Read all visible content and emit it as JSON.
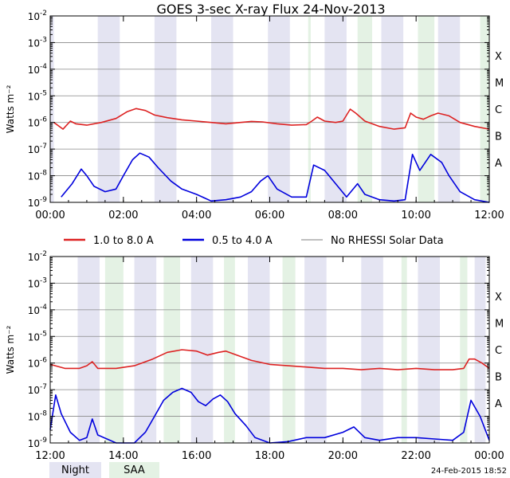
{
  "title": "GOES 3-sec X-ray Flux   24-Nov-2013",
  "footer_date": "24-Feb-2015 18:52",
  "colors": {
    "long": "#dd2222",
    "short": "#0000dd",
    "no_data": "#999999",
    "night": "#e4e4f2",
    "saa": "#e4f2e4",
    "grid": "#888888"
  },
  "legend": {
    "long": "1.0 to 8.0 A",
    "short": "0.5 to 4.0 A",
    "no_data": "No RHESSI Solar Data",
    "night": "Night",
    "saa": "SAA"
  },
  "chart_data": [
    {
      "type": "line",
      "panel": "top",
      "ylabel": "Watts m⁻²",
      "ylim_log10": [
        -9,
        -2
      ],
      "y_tick_exponents": [
        -9,
        -8,
        -7,
        -6,
        -5,
        -4,
        -3,
        -2
      ],
      "xlim_hours": [
        0,
        12
      ],
      "x_tick_labels": [
        "00:00",
        "02:00",
        "04:00",
        "06:00",
        "08:00",
        "10:00",
        "12:00"
      ],
      "class_labels": [
        {
          "label": "A",
          "log10": -8
        },
        {
          "label": "B",
          "log10": -7
        },
        {
          "label": "C",
          "log10": -6
        },
        {
          "label": "M",
          "log10": -5
        },
        {
          "label": "X",
          "log10": -4
        }
      ],
      "night_bands_hours": [
        [
          0,
          0.1
        ],
        [
          1.3,
          1.9
        ],
        [
          2.85,
          3.45
        ],
        [
          4.4,
          5.0
        ],
        [
          5.95,
          6.55
        ],
        [
          7.5,
          8.1
        ],
        [
          9.05,
          9.65
        ],
        [
          10.6,
          11.2
        ]
      ],
      "saa_bands_hours": [
        [
          7.05,
          7.12
        ],
        [
          8.4,
          8.8
        ],
        [
          10.05,
          10.5
        ],
        [
          11.75,
          12
        ]
      ],
      "series": [
        {
          "name": "1.0 to 8.0 A",
          "key": "long",
          "points": [
            [
              0.1,
              -6.0
            ],
            [
              0.35,
              -6.25
            ],
            [
              0.55,
              -5.95
            ],
            [
              0.7,
              -6.05
            ],
            [
              1.0,
              -6.1
            ],
            [
              1.4,
              -6.0
            ],
            [
              1.8,
              -5.85
            ],
            [
              2.1,
              -5.6
            ],
            [
              2.35,
              -5.48
            ],
            [
              2.6,
              -5.55
            ],
            [
              2.85,
              -5.72
            ],
            [
              3.2,
              -5.82
            ],
            [
              3.6,
              -5.9
            ],
            [
              4.0,
              -5.95
            ],
            [
              4.4,
              -6.0
            ],
            [
              4.8,
              -6.05
            ],
            [
              5.2,
              -6.0
            ],
            [
              5.5,
              -5.96
            ],
            [
              5.8,
              -5.98
            ],
            [
              6.2,
              -6.05
            ],
            [
              6.6,
              -6.1
            ],
            [
              7.0,
              -6.08
            ],
            [
              7.15,
              -5.95
            ],
            [
              7.3,
              -5.8
            ],
            [
              7.5,
              -5.95
            ],
            [
              7.8,
              -6.0
            ],
            [
              8.0,
              -5.95
            ],
            [
              8.2,
              -5.5
            ],
            [
              8.35,
              -5.65
            ],
            [
              8.6,
              -5.95
            ],
            [
              9.0,
              -6.15
            ],
            [
              9.4,
              -6.25
            ],
            [
              9.7,
              -6.2
            ],
            [
              9.85,
              -5.65
            ],
            [
              10.0,
              -5.8
            ],
            [
              10.2,
              -5.88
            ],
            [
              10.4,
              -5.75
            ],
            [
              10.6,
              -5.65
            ],
            [
              10.9,
              -5.75
            ],
            [
              11.2,
              -6.0
            ],
            [
              11.6,
              -6.15
            ],
            [
              12.0,
              -6.25
            ]
          ]
        },
        {
          "name": "0.5 to 4.0 A",
          "key": "short",
          "points": [
            [
              0.3,
              -8.8
            ],
            [
              0.6,
              -8.3
            ],
            [
              0.85,
              -7.75
            ],
            [
              1.0,
              -8.0
            ],
            [
              1.2,
              -8.4
            ],
            [
              1.5,
              -8.6
            ],
            [
              1.8,
              -8.5
            ],
            [
              2.0,
              -8.0
            ],
            [
              2.25,
              -7.4
            ],
            [
              2.45,
              -7.15
            ],
            [
              2.7,
              -7.3
            ],
            [
              2.95,
              -7.7
            ],
            [
              3.3,
              -8.2
            ],
            [
              3.6,
              -8.5
            ],
            [
              4.0,
              -8.7
            ],
            [
              4.4,
              -8.95
            ],
            [
              4.8,
              -8.9
            ],
            [
              5.2,
              -8.8
            ],
            [
              5.5,
              -8.6
            ],
            [
              5.75,
              -8.2
            ],
            [
              5.95,
              -8.0
            ],
            [
              6.2,
              -8.5
            ],
            [
              6.6,
              -8.8
            ],
            [
              7.0,
              -8.8
            ],
            [
              7.2,
              -7.6
            ],
            [
              7.5,
              -7.8
            ],
            [
              7.8,
              -8.3
            ],
            [
              8.1,
              -8.8
            ],
            [
              8.4,
              -8.3
            ],
            [
              8.6,
              -8.7
            ],
            [
              9.0,
              -8.9
            ],
            [
              9.4,
              -8.95
            ],
            [
              9.7,
              -8.9
            ],
            [
              9.9,
              -7.2
            ],
            [
              10.1,
              -7.8
            ],
            [
              10.4,
              -7.2
            ],
            [
              10.7,
              -7.5
            ],
            [
              10.9,
              -8.0
            ],
            [
              11.2,
              -8.6
            ],
            [
              11.6,
              -8.9
            ],
            [
              12.0,
              -9.0
            ]
          ]
        }
      ]
    },
    {
      "type": "line",
      "panel": "bottom",
      "ylabel": "Watts m⁻²",
      "ylim_log10": [
        -9,
        -2
      ],
      "y_tick_exponents": [
        -9,
        -8,
        -7,
        -6,
        -5,
        -4,
        -3,
        -2
      ],
      "xlim_hours": [
        12,
        24
      ],
      "x_tick_labels": [
        "12:00",
        "14:00",
        "16:00",
        "18:00",
        "20:00",
        "22:00",
        "00:00"
      ],
      "class_labels": [
        {
          "label": "A",
          "log10": -8
        },
        {
          "label": "B",
          "log10": -7
        },
        {
          "label": "C",
          "log10": -6
        },
        {
          "label": "M",
          "log10": -5
        },
        {
          "label": "X",
          "log10": -4
        }
      ],
      "night_bands_hours": [
        [
          12.75,
          13.35
        ],
        [
          14.3,
          14.9
        ],
        [
          15.85,
          16.45
        ],
        [
          17.4,
          18.0
        ],
        [
          18.95,
          19.55
        ],
        [
          20.5,
          21.1
        ],
        [
          22.05,
          22.65
        ],
        [
          23.6,
          23.9
        ]
      ],
      "saa_bands_hours": [
        [
          13.5,
          14.0
        ],
        [
          15.1,
          15.55
        ],
        [
          16.75,
          17.05
        ],
        [
          18.35,
          18.7
        ],
        [
          21.6,
          21.75
        ],
        [
          23.2,
          23.4
        ]
      ],
      "series": [
        {
          "name": "1.0 to 8.0 A",
          "key": "long",
          "points": [
            [
              12.0,
              -6.05
            ],
            [
              12.4,
              -6.2
            ],
            [
              12.8,
              -6.2
            ],
            [
              13.0,
              -6.1
            ],
            [
              13.15,
              -5.95
            ],
            [
              13.3,
              -6.2
            ],
            [
              13.8,
              -6.2
            ],
            [
              14.3,
              -6.1
            ],
            [
              14.8,
              -5.85
            ],
            [
              15.2,
              -5.6
            ],
            [
              15.6,
              -5.5
            ],
            [
              16.0,
              -5.55
            ],
            [
              16.3,
              -5.7
            ],
            [
              16.6,
              -5.6
            ],
            [
              16.8,
              -5.55
            ],
            [
              17.1,
              -5.7
            ],
            [
              17.5,
              -5.9
            ],
            [
              18.0,
              -6.05
            ],
            [
              18.5,
              -6.1
            ],
            [
              19.0,
              -6.15
            ],
            [
              19.5,
              -6.2
            ],
            [
              20.0,
              -6.2
            ],
            [
              20.5,
              -6.25
            ],
            [
              21.0,
              -6.2
            ],
            [
              21.5,
              -6.25
            ],
            [
              22.0,
              -6.2
            ],
            [
              22.5,
              -6.25
            ],
            [
              23.0,
              -6.25
            ],
            [
              23.3,
              -6.2
            ],
            [
              23.45,
              -5.85
            ],
            [
              23.6,
              -5.85
            ],
            [
              23.8,
              -6.0
            ],
            [
              24.0,
              -6.2
            ]
          ]
        },
        {
          "name": "0.5 to 4.0 A",
          "key": "short",
          "points": [
            [
              12.0,
              -8.5
            ],
            [
              12.15,
              -7.2
            ],
            [
              12.3,
              -7.9
            ],
            [
              12.55,
              -8.6
            ],
            [
              12.8,
              -8.9
            ],
            [
              13.0,
              -8.8
            ],
            [
              13.15,
              -8.1
            ],
            [
              13.3,
              -8.7
            ],
            [
              13.8,
              -9.0
            ],
            [
              14.3,
              -9.0
            ],
            [
              14.6,
              -8.6
            ],
            [
              14.85,
              -8.0
            ],
            [
              15.1,
              -7.4
            ],
            [
              15.35,
              -7.1
            ],
            [
              15.6,
              -6.95
            ],
            [
              15.85,
              -7.1
            ],
            [
              16.05,
              -7.45
            ],
            [
              16.25,
              -7.6
            ],
            [
              16.45,
              -7.35
            ],
            [
              16.65,
              -7.2
            ],
            [
              16.85,
              -7.45
            ],
            [
              17.05,
              -7.9
            ],
            [
              17.35,
              -8.35
            ],
            [
              17.6,
              -8.8
            ],
            [
              18.0,
              -9.0
            ],
            [
              18.5,
              -8.95
            ],
            [
              19.0,
              -8.8
            ],
            [
              19.5,
              -8.8
            ],
            [
              20.0,
              -8.6
            ],
            [
              20.3,
              -8.4
            ],
            [
              20.6,
              -8.8
            ],
            [
              21.0,
              -8.9
            ],
            [
              21.5,
              -8.8
            ],
            [
              22.0,
              -8.8
            ],
            [
              22.5,
              -8.85
            ],
            [
              23.0,
              -8.9
            ],
            [
              23.3,
              -8.6
            ],
            [
              23.5,
              -7.4
            ],
            [
              23.75,
              -8.0
            ],
            [
              24.0,
              -8.9
            ]
          ]
        }
      ]
    }
  ]
}
